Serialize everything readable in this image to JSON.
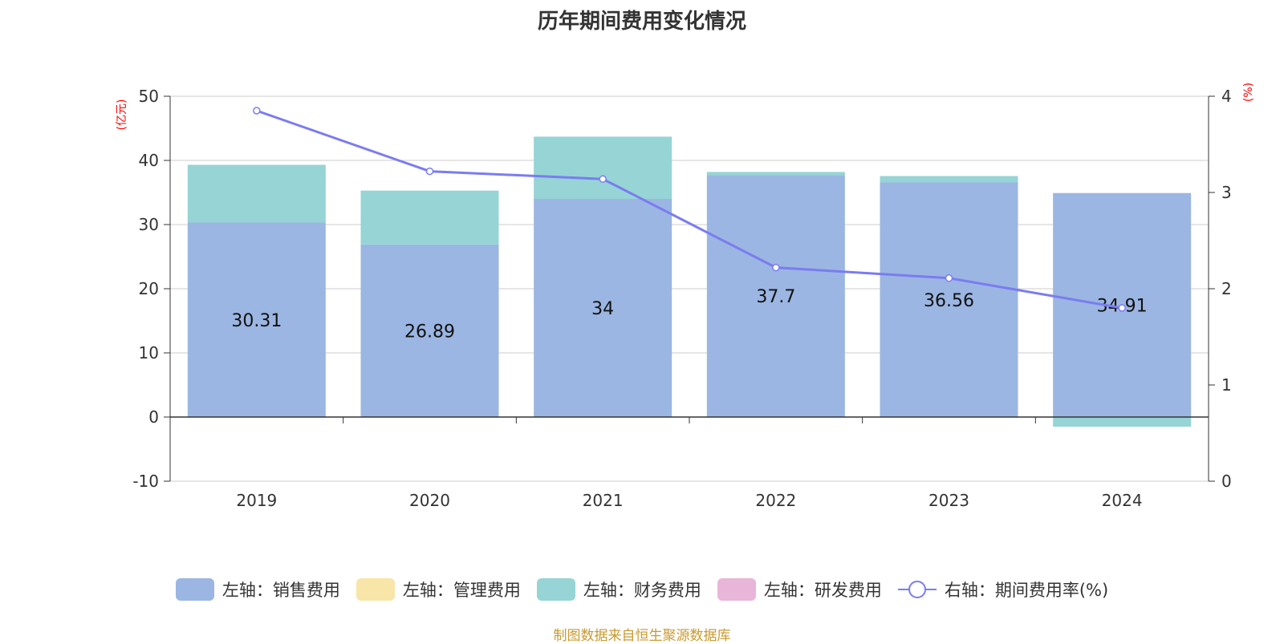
{
  "title": "历年期间费用变化情况",
  "source": "制图数据来自恒生聚源数据库",
  "colors": {
    "sales": "#9bb6e2",
    "management": "#f8e5a8",
    "finance": "#96d4d5",
    "rnd": "#e8b6d9",
    "rate": "#7b7cf0",
    "unit": "#ff0000",
    "source": "#c99a2e"
  },
  "chart_data": {
    "type": "bar",
    "stacked": true,
    "categories": [
      "2019",
      "2020",
      "2021",
      "2022",
      "2023",
      "2024"
    ],
    "left_axis": {
      "unit": "(亿元)",
      "ylim": [
        -10,
        50
      ],
      "ticks": [
        "-10",
        "0",
        "10",
        "20",
        "30",
        "40",
        "50"
      ]
    },
    "right_axis": {
      "unit": "(%)",
      "ylim": [
        0,
        4
      ],
      "ticks": [
        "0",
        "1",
        "2",
        "3",
        "4"
      ]
    },
    "series": [
      {
        "name": "左轴：销售费用",
        "key": "sales",
        "axis": "left",
        "values": [
          30.31,
          26.89,
          34,
          37.7,
          36.56,
          34.91
        ],
        "labels": [
          "30.31",
          "26.89",
          "34",
          "37.7",
          "36.56",
          "34.91"
        ]
      },
      {
        "name": "左轴：管理费用",
        "key": "management",
        "axis": "left",
        "values": [
          0,
          0,
          0,
          0,
          0,
          0
        ]
      },
      {
        "name": "左轴：财务费用",
        "key": "finance",
        "axis": "left",
        "values": [
          9.0,
          8.4,
          9.7,
          0.5,
          1.0,
          -1.5
        ]
      },
      {
        "name": "左轴：研发费用",
        "key": "rnd",
        "axis": "left",
        "values": [
          0,
          0,
          0,
          0,
          0,
          0
        ]
      },
      {
        "name": "右轴：期间费用率(%)",
        "key": "rate",
        "type": "line",
        "axis": "right",
        "values": [
          3.85,
          3.22,
          3.14,
          2.22,
          2.11,
          1.8
        ]
      }
    ],
    "grid": true,
    "legend_position": "bottom"
  }
}
